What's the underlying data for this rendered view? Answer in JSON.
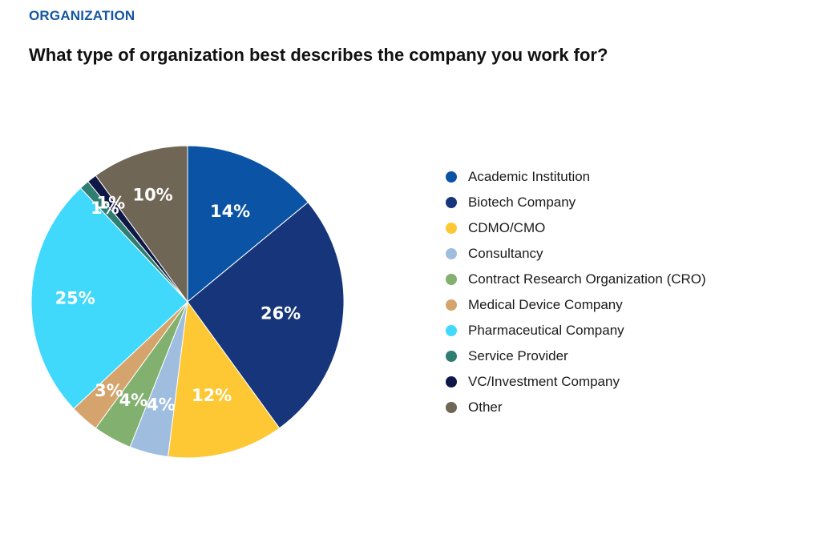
{
  "header": {
    "section_label": "ORGANIZATION",
    "question": "What type of organization best describes the company you work for?"
  },
  "chart_data": {
    "type": "pie",
    "title": "What type of organization best describes the company you work for?",
    "start_angle_deg": 0,
    "direction": "clockwise",
    "legend_position": "right",
    "slices": [
      {
        "label": "Academic Institution",
        "value": 14,
        "display": "14%",
        "color": "#0a53a5"
      },
      {
        "label": "Biotech Company",
        "value": 26,
        "display": "26%",
        "color": "#17357a"
      },
      {
        "label": "CDMO/CMO",
        "value": 12,
        "display": "12%",
        "color": "#fdc834"
      },
      {
        "label": "Consultancy",
        "value": 4,
        "display": "4%",
        "color": "#9fbddf"
      },
      {
        "label": "Contract Research Organization (CRO)",
        "value": 4,
        "display": "4%",
        "color": "#82b06f"
      },
      {
        "label": "Medical Device Company",
        "value": 3,
        "display": "3%",
        "color": "#d4a46c"
      },
      {
        "label": "Pharmaceutical Company",
        "value": 25,
        "display": "25%",
        "color": "#40d9fb"
      },
      {
        "label": "Service Provider",
        "value": 1,
        "display": "1%",
        "color": "#2f7e70"
      },
      {
        "label": "VC/Investment Company",
        "value": 1,
        "display": "1%",
        "color": "#0e1746"
      },
      {
        "label": "Other",
        "value": 10,
        "display": "10%",
        "color": "#706656"
      }
    ]
  }
}
